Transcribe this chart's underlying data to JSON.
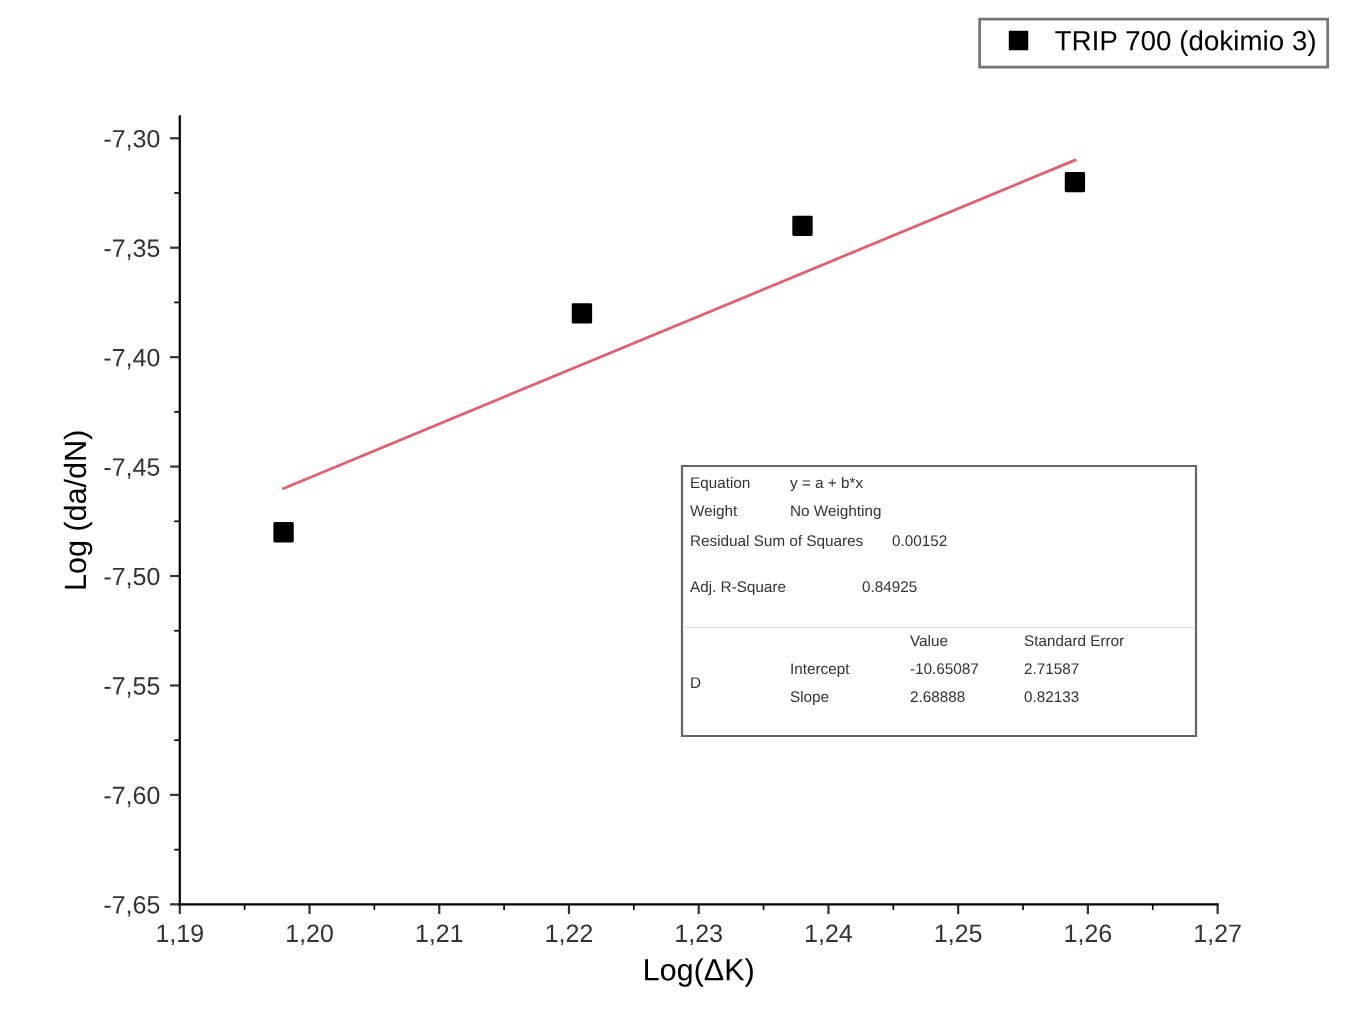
{
  "chart_data": {
    "type": "scatter",
    "xlabel": "Log(ΔK)",
    "ylabel": "Log (da/dN)",
    "series": [
      {
        "name": "TRIP 700 (dokimio 3)",
        "color": "#000000",
        "marker": "square",
        "x": [
          1.198,
          1.221,
          1.238,
          1.259
        ],
        "values": [
          -7.48,
          -7.38,
          -7.34,
          -7.32
        ]
      },
      {
        "type": "line",
        "color": "#e06070",
        "line_style": "solid",
        "marker": "none",
        "x": [
          1.198,
          1.259
        ],
        "values": [
          -7.46,
          -7.31
        ]
      }
    ],
    "xlim": [
      1.19,
      1.27
    ],
    "xticks": [
      {
        "value": 1.19,
        "label": "1,19"
      },
      {
        "value": 1.2,
        "label": "1,20"
      },
      {
        "value": 1.21,
        "label": "1,21"
      },
      {
        "value": 1.22,
        "label": "1,22"
      },
      {
        "value": 1.23,
        "label": "1,23"
      },
      {
        "value": 1.24,
        "label": "1,24"
      },
      {
        "value": 1.25,
        "label": "1,25"
      },
      {
        "value": 1.26,
        "label": "1,26"
      },
      {
        "value": 1.27,
        "label": "1,27"
      }
    ],
    "ylim": [
      -7.65,
      -7.29
    ],
    "yticks": [
      {
        "value": -7.3,
        "label": "-7,30"
      },
      {
        "value": -7.35,
        "label": "-7,35"
      },
      {
        "value": -7.4,
        "label": "-7,40"
      },
      {
        "value": -7.45,
        "label": "-7,45"
      },
      {
        "value": -7.5,
        "label": "-7,50"
      },
      {
        "value": -7.55,
        "label": "-7,55"
      },
      {
        "value": -7.6,
        "label": "-7,60"
      },
      {
        "value": -7.65,
        "label": "-7,65"
      }
    ],
    "grid": false,
    "legend": "top right",
    "annotations": [
      "Equation",
      "y = a + b*x",
      "Weight",
      "No Weighting",
      "Residual Sum of Squares",
      "0.00152",
      "Adj. R-Square",
      "0.84925",
      "Value",
      "Standard Error",
      "D",
      "Intercept",
      "-10.65087",
      "2.71587",
      "Slope",
      "2.68888",
      "0.82133"
    ]
  }
}
